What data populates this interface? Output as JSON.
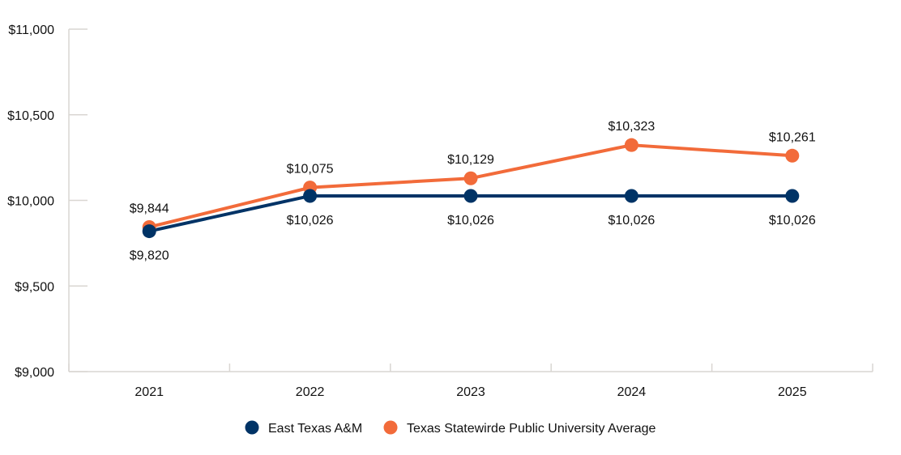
{
  "chart_data": {
    "type": "line",
    "categories": [
      "2021",
      "2022",
      "2023",
      "2024",
      "2025"
    ],
    "ylim": [
      9000,
      11000
    ],
    "yticks": [
      9000,
      9500,
      10000,
      10500,
      11000
    ],
    "ytick_labels": [
      "$9,000",
      "$9,500",
      "$10,000",
      "$10,500",
      "$11,000"
    ],
    "grid": false,
    "legend": "bottom",
    "series": [
      {
        "name": "East Texas A&M",
        "color": "#003366",
        "values": [
          9820,
          10026,
          10026,
          10026,
          10026
        ],
        "labels": [
          "$9,820",
          "$10,026",
          "$10,026",
          "$10,026",
          "$10,026"
        ]
      },
      {
        "name": "Texas Statewirde Public University Average",
        "color": "#f26b3a",
        "values": [
          9844,
          10075,
          10129,
          10323,
          10261
        ],
        "labels": [
          "$9,844",
          "$10,075",
          "$10,129",
          "$10,323",
          "$10,261"
        ]
      }
    ]
  }
}
